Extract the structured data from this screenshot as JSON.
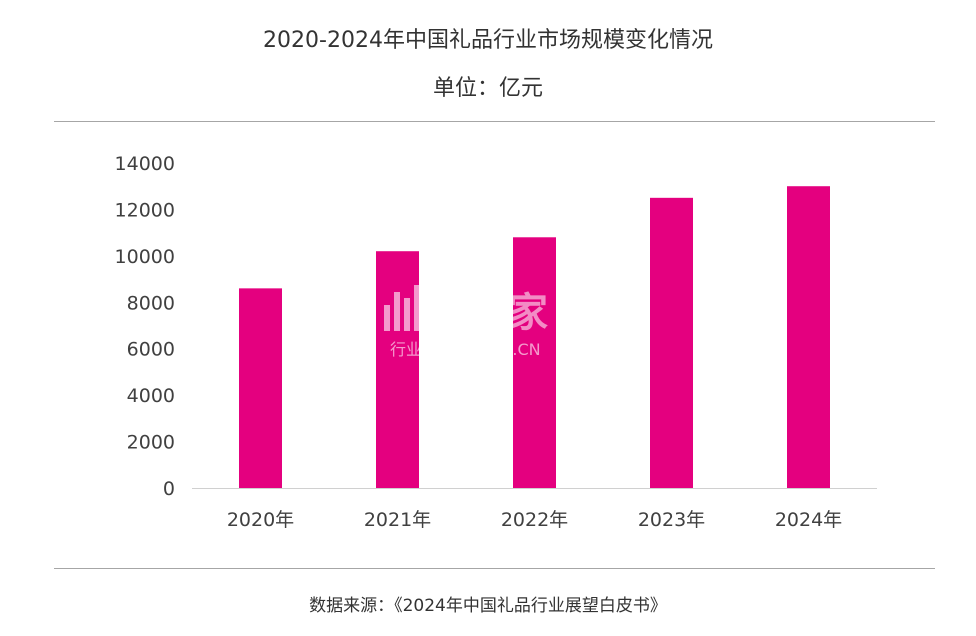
{
  "chart_data": {
    "type": "bar",
    "title": "2020-2024年中国礼品行业市场规模变化情况",
    "subtitle": "单位：亿元",
    "categories": [
      "2020年",
      "2021年",
      "2022年",
      "2023年",
      "2024年"
    ],
    "values": [
      8600,
      10200,
      10800,
      12500,
      13000
    ],
    "yticks": [
      "0",
      "2000",
      "4000",
      "6000",
      "8000",
      "10000",
      "12000",
      "14000"
    ],
    "ylim": [
      0,
      14000
    ],
    "grid": false,
    "legend": "none",
    "bar_color": "#e4007f",
    "source": "数据来源：《2024年中国礼品行业展望白皮书》"
  },
  "watermark": {
    "main": "并购家",
    "sub": "行业报告 IPOIPO.CN"
  }
}
